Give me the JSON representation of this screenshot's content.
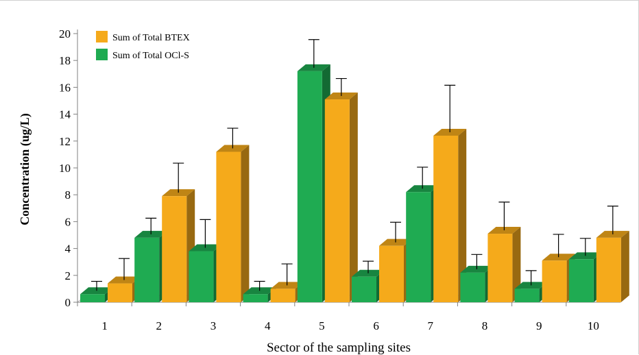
{
  "chart_data": {
    "type": "bar",
    "title": "",
    "xlabel": "Sector of the sampling sites",
    "ylabel": "Concentration (ug/L)",
    "ylim": [
      0,
      20
    ],
    "yticks": [
      "0",
      "2",
      "4",
      "6",
      "8",
      "10",
      "12",
      "14",
      "16",
      "18",
      "20"
    ],
    "categories": [
      "1",
      "2",
      "3",
      "4",
      "5",
      "6",
      "7",
      "8",
      "9",
      "10"
    ],
    "legend_position": "top-left",
    "grid": false,
    "three_d": true,
    "series": [
      {
        "name": "Sum of Total OCl-S",
        "color": "#1fab52",
        "values": [
          0.6,
          4.8,
          3.8,
          0.6,
          17.2,
          1.9,
          8.2,
          2.2,
          1.0,
          3.2
        ],
        "error": [
          0.7,
          1.2,
          2.1,
          0.7,
          2.1,
          0.9,
          1.6,
          1.1,
          1.1,
          1.3
        ]
      },
      {
        "name": "Sum of Total BTEX",
        "color": "#f5aa1b",
        "values": [
          1.4,
          7.9,
          11.2,
          1.0,
          15.1,
          4.2,
          12.4,
          5.1,
          3.1,
          4.8
        ],
        "error": [
          1.6,
          2.2,
          1.5,
          1.6,
          1.3,
          1.5,
          3.5,
          2.1,
          1.7,
          2.1
        ]
      }
    ]
  },
  "legend": {
    "items": [
      {
        "label": "Sum of Total BTEX",
        "color": "#f5aa1b"
      },
      {
        "label": "Sum of Total OCl-S",
        "color": "#1fab52"
      }
    ]
  }
}
